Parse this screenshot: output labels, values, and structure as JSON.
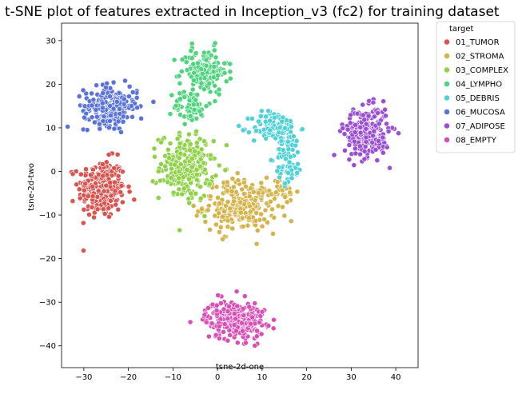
{
  "chart_data": {
    "type": "scatter",
    "title": "t-SNE plot of features extracted in Inception_v3 (fc2) for training dataset",
    "xlabel": "tsne-2d-one",
    "ylabel": "tsne-2d-two",
    "xlim": [
      -35,
      45
    ],
    "ylim": [
      -45,
      34
    ],
    "xticks": [
      -30,
      -20,
      -10,
      0,
      10,
      20,
      30,
      40
    ],
    "yticks": [
      -40,
      -30,
      -20,
      -10,
      0,
      10,
      20,
      30
    ],
    "grid": false,
    "legend": {
      "title": "target",
      "placement": "outside-top-right"
    },
    "series": [
      {
        "name": "01_TUMOR",
        "color": "#d9534f",
        "clusters": [
          {
            "center": [
              -26,
              -4
            ],
            "spread": [
              3.5,
              4.5
            ],
            "count": 260
          }
        ]
      },
      {
        "name": "02_STROMA",
        "color": "#d4b44a",
        "clusters": [
          {
            "center": [
              5,
              -8
            ],
            "spread": [
              5.5,
              4.0
            ],
            "count": 230
          },
          {
            "center": [
              15,
              -5
            ],
            "spread": [
              2.0,
              2.5
            ],
            "count": 30
          }
        ]
      },
      {
        "name": "03_COMPLEX",
        "color": "#8fd24a",
        "clusters": [
          {
            "center": [
              -7,
              1
            ],
            "spread": [
              4.0,
              5.0
            ],
            "count": 220
          }
        ]
      },
      {
        "name": "04_LYMPHO",
        "color": "#4fd47e",
        "clusters": [
          {
            "center": [
              -3,
              23
            ],
            "spread": [
              3.5,
              3.5
            ],
            "count": 150
          },
          {
            "center": [
              -6,
              15
            ],
            "spread": [
              2.5,
              2.5
            ],
            "count": 60
          }
        ]
      },
      {
        "name": "05_DEBRIS",
        "color": "#4fd1d6",
        "clusters": [
          {
            "center": [
              13,
              10
            ],
            "spread": [
              3.5,
              2.5
            ],
            "count": 110
          },
          {
            "center": [
              16,
              3
            ],
            "spread": [
              2.0,
              4.0
            ],
            "count": 70
          }
        ]
      },
      {
        "name": "06_MUCOSA",
        "color": "#5a73d9",
        "clusters": [
          {
            "center": [
              -24,
              15
            ],
            "spread": [
              4.0,
              3.0
            ],
            "count": 240
          }
        ]
      },
      {
        "name": "07_ADIPOSE",
        "color": "#9a4fd3",
        "clusters": [
          {
            "center": [
              33.5,
              9
            ],
            "spread": [
              3.3,
              3.8
            ],
            "count": 250
          }
        ]
      },
      {
        "name": "08_EMPTY",
        "color": "#d84fb5",
        "clusters": [
          {
            "center": [
              4,
              -34
            ],
            "spread": [
              4.5,
              3.0
            ],
            "count": 260
          }
        ]
      }
    ]
  }
}
